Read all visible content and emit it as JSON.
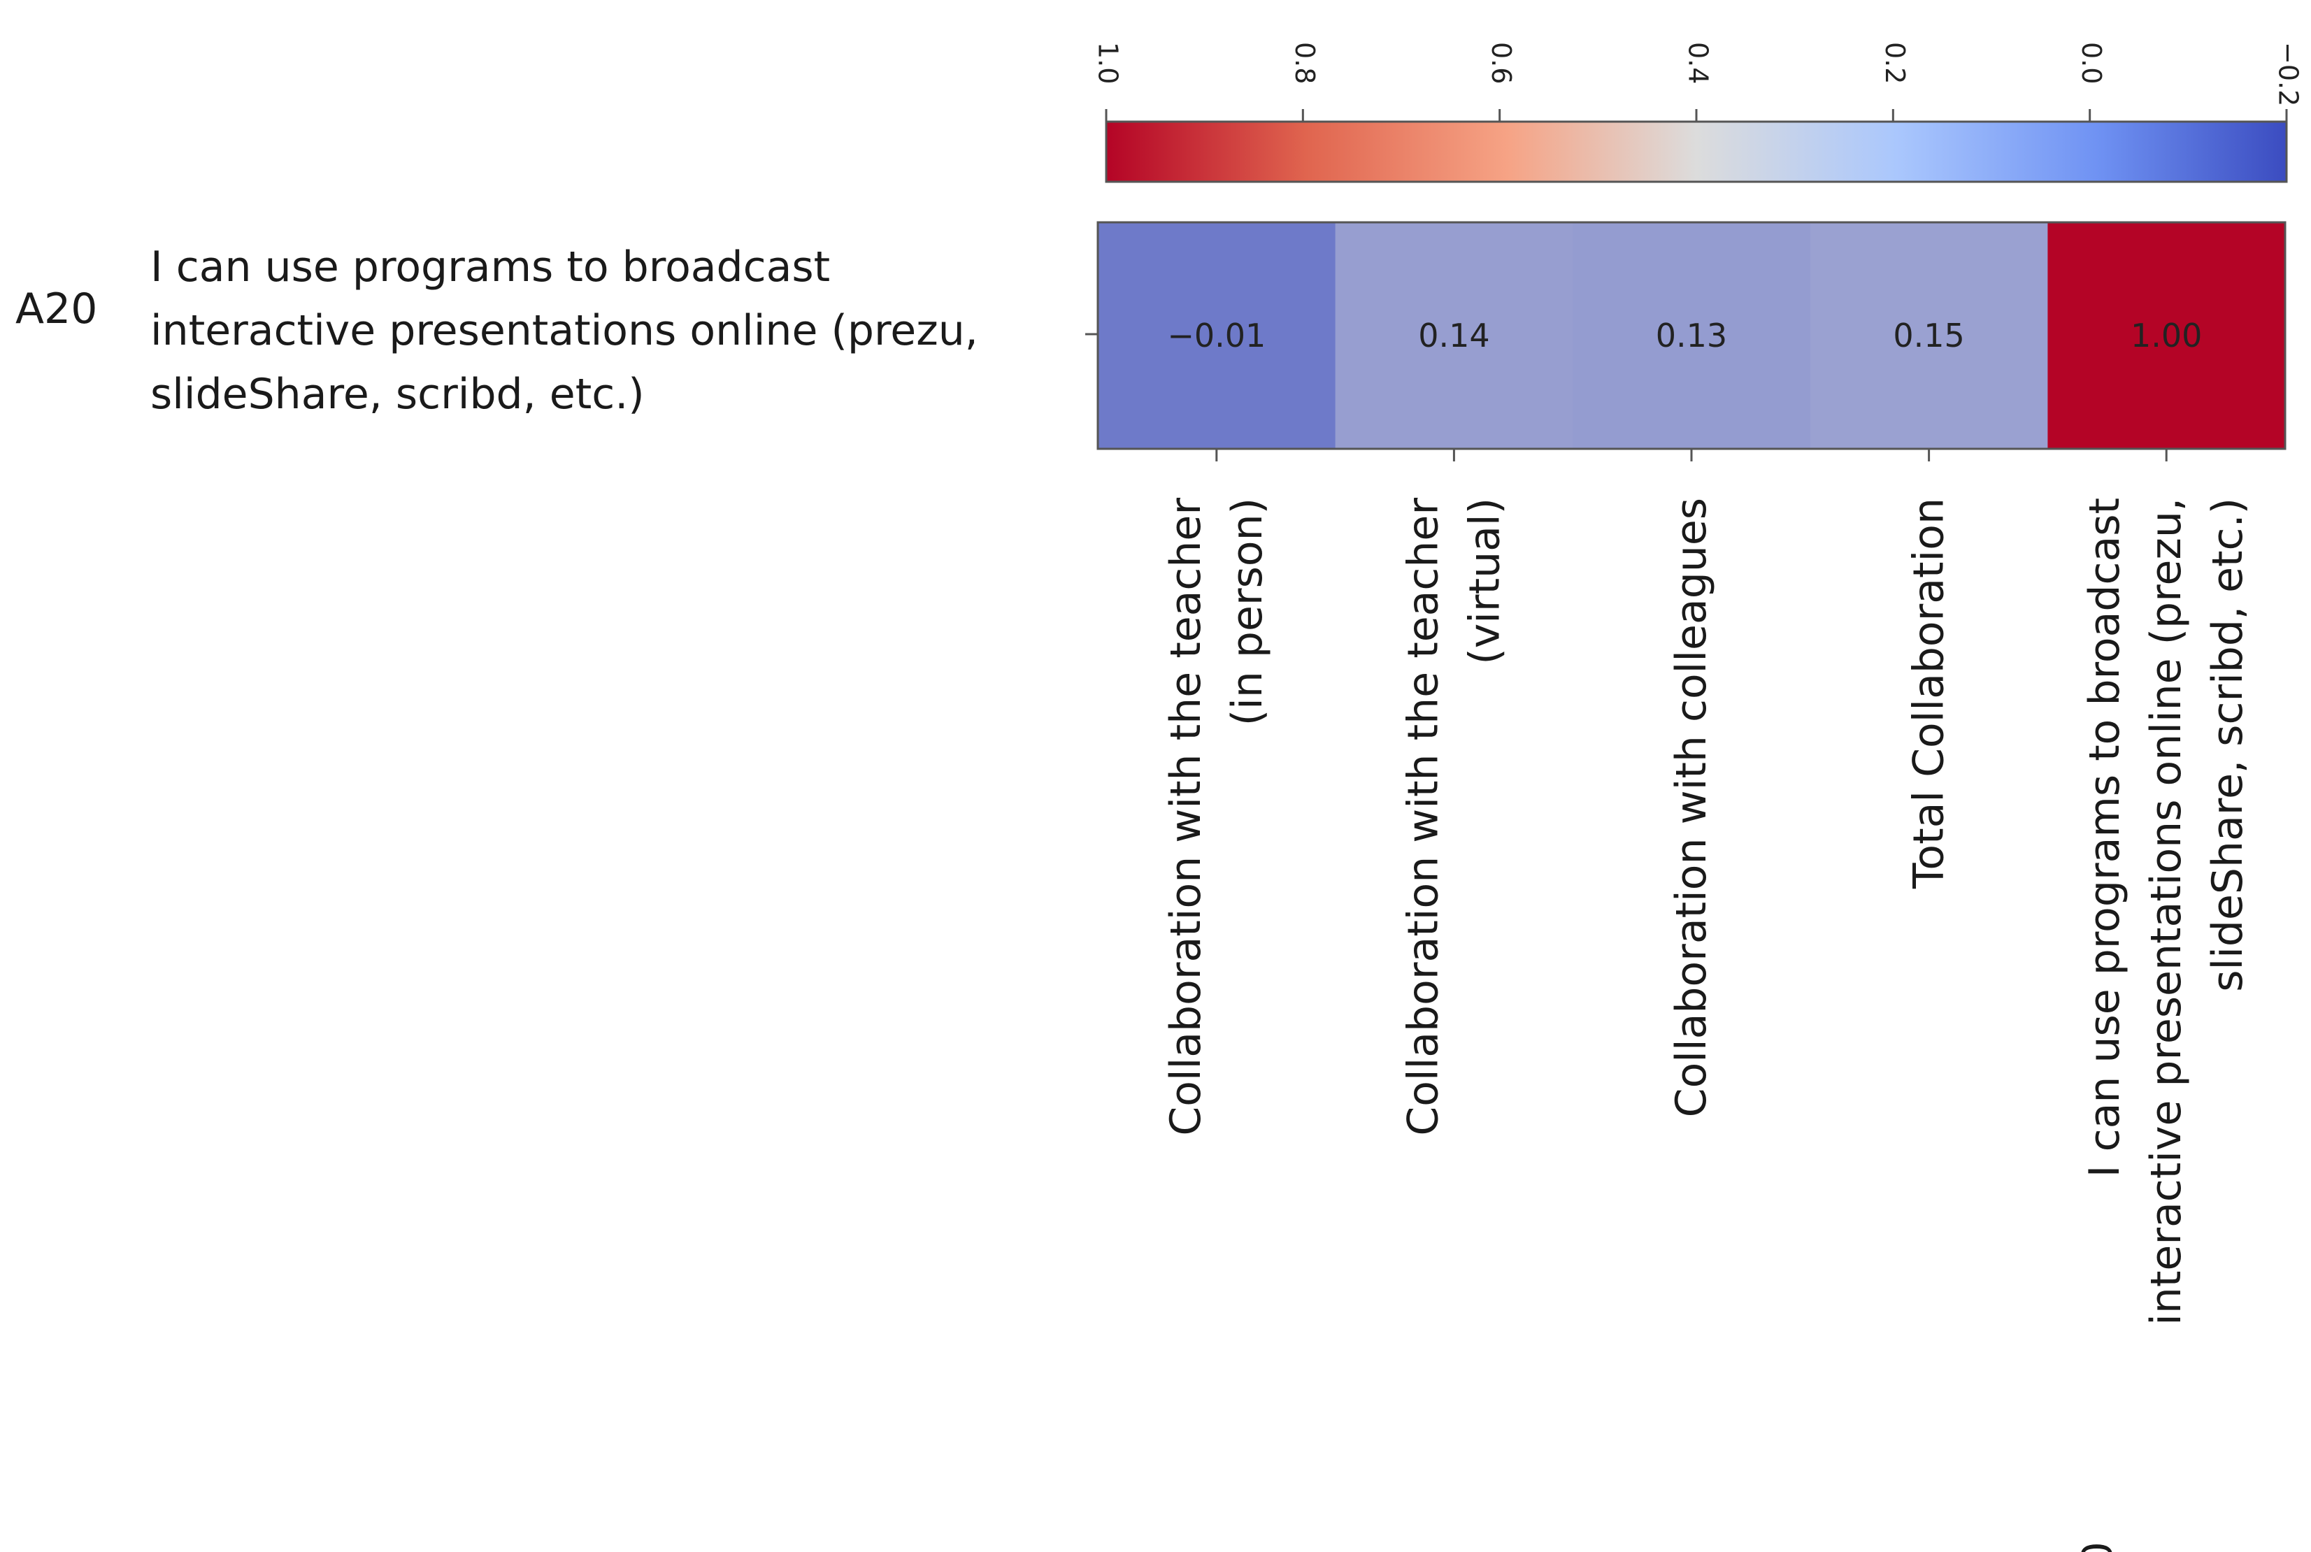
{
  "chart_data": {
    "type": "heatmap",
    "title": "",
    "row_code": "A20",
    "rows": [
      "I can use programs to broadcast interactive presentations online (prezu, slideShare, scribd, etc.)"
    ],
    "row_label_lines": [
      "I can use programs to broadcast",
      "interactive presentations online (prezu,",
      "slideShare, scribd, etc.)"
    ],
    "columns": [
      {
        "lines": [
          "Collaboration with the teacher",
          "(in person)"
        ]
      },
      {
        "lines": [
          "Collaboration with the teacher",
          "(virtual)"
        ]
      },
      {
        "lines": [
          "Collaboration with colleagues"
        ]
      },
      {
        "lines": [
          "Total Collaboration"
        ]
      },
      {
        "lines": [
          "I can use programs to broadcast",
          "interactive presentations online (prezu,",
          "slideShare, scribd, etc.)"
        ],
        "code": "A20"
      }
    ],
    "values": [
      [
        -0.01,
        0.14,
        0.13,
        0.15,
        1.0
      ]
    ],
    "cell_labels": [
      "−0.01",
      "0.14",
      "0.13",
      "0.15",
      "1.00"
    ],
    "colorbar": {
      "orientation": "horizontal-reversed",
      "range": [
        1.0,
        -0.2
      ],
      "ticks": [
        1.0,
        0.8,
        0.6,
        0.4,
        0.2,
        0.0,
        -0.2
      ],
      "tick_labels": [
        "1.0",
        "0.8",
        "0.6",
        "0.4",
        "0.2",
        "0.0",
        "−0.2"
      ],
      "colormap": "coolwarm",
      "low_color": "#3b4cc0",
      "mid_color": "#dddddd",
      "high_color": "#b40426"
    }
  }
}
